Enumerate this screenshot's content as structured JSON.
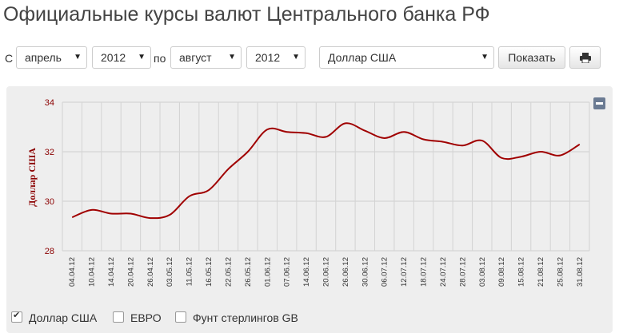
{
  "page": {
    "title": "Официальные курсы валют Центрального банка РФ"
  },
  "filters": {
    "from_label": "С",
    "from_month": "апрель",
    "from_year": "2012",
    "to_label": "по",
    "to_month": "август",
    "to_year": "2012",
    "currency": "Доллар США",
    "show_button": "Показать",
    "print_icon": "printer-icon"
  },
  "legend": [
    {
      "label": "Доллар США",
      "checked": true
    },
    {
      "label": "ЕВРО",
      "checked": false
    },
    {
      "label": "Фунт стерлингов GB",
      "checked": false
    }
  ],
  "chart_data": {
    "type": "line",
    "ylabel": "Доллар США",
    "ylim": [
      28,
      34
    ],
    "yticks": [
      28,
      30,
      32,
      34
    ],
    "categories": [
      "04.04.12",
      "10.04.12",
      "14.04.12",
      "20.04.12",
      "26.04.12",
      "03.05.12",
      "11.05.12",
      "16.05.12",
      "22.05.12",
      "26.05.12",
      "01.06.12",
      "07.06.12",
      "14.06.12",
      "20.06.12",
      "26.06.12",
      "30.06.12",
      "06.07.12",
      "12.07.12",
      "18.07.12",
      "24.07.12",
      "28.07.12",
      "03.08.12",
      "09.08.12",
      "15.08.12",
      "21.08.12",
      "25.08.12",
      "31.08.12"
    ],
    "series": [
      {
        "color": "#a00000",
        "values": [
          29.35,
          29.65,
          29.5,
          29.5,
          29.32,
          29.45,
          30.2,
          30.45,
          31.3,
          32.0,
          32.9,
          32.8,
          32.75,
          32.6,
          33.15,
          32.85,
          32.55,
          32.8,
          32.5,
          32.4,
          32.25,
          32.45,
          31.75,
          31.8,
          32.0,
          31.85,
          32.3
        ]
      }
    ],
    "grid": true
  }
}
